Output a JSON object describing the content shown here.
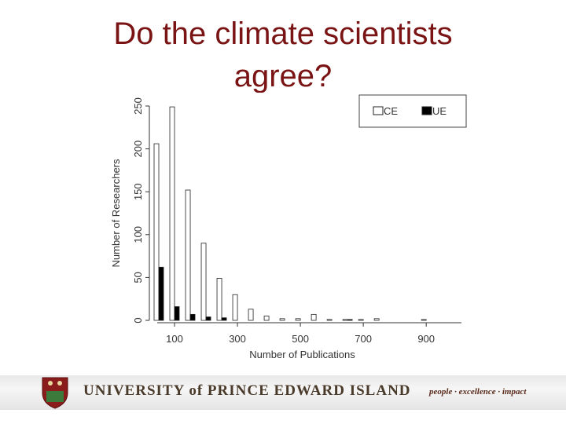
{
  "slide_title": "Do the climate scientists agree?",
  "footer": {
    "university": "UNIVERSITY of PRINCE EDWARD ISLAND",
    "motto": "people · excellence · impact"
  },
  "chart_data": {
    "type": "bar",
    "x_label": "Number of Publications",
    "y_label": "Number of Researchers",
    "x": [
      50,
      100,
      150,
      200,
      250,
      300,
      350,
      400,
      450,
      500,
      550,
      600,
      650,
      700,
      750,
      800,
      850,
      900,
      950,
      1000
    ],
    "series": [
      {
        "name": "CE",
        "color": "#ffffff",
        "values": [
          206,
          249,
          152,
          90,
          49,
          30,
          13,
          5,
          2,
          2,
          7,
          1,
          1,
          1,
          2,
          0,
          0,
          1,
          0,
          0
        ]
      },
      {
        "name": "UE",
        "color": "#000000",
        "values": [
          62,
          16,
          7,
          4,
          3,
          0,
          0,
          0,
          0,
          0,
          0,
          0,
          1,
          0,
          0,
          0,
          0,
          0,
          0,
          0
        ]
      }
    ],
    "xlim": [
      20,
      1012
    ],
    "xticks": [
      100,
      300,
      500,
      700,
      900
    ],
    "ylim": [
      0,
      250
    ],
    "yticks": [
      0,
      50,
      100,
      150,
      200,
      250
    ],
    "legend": "top-right"
  }
}
